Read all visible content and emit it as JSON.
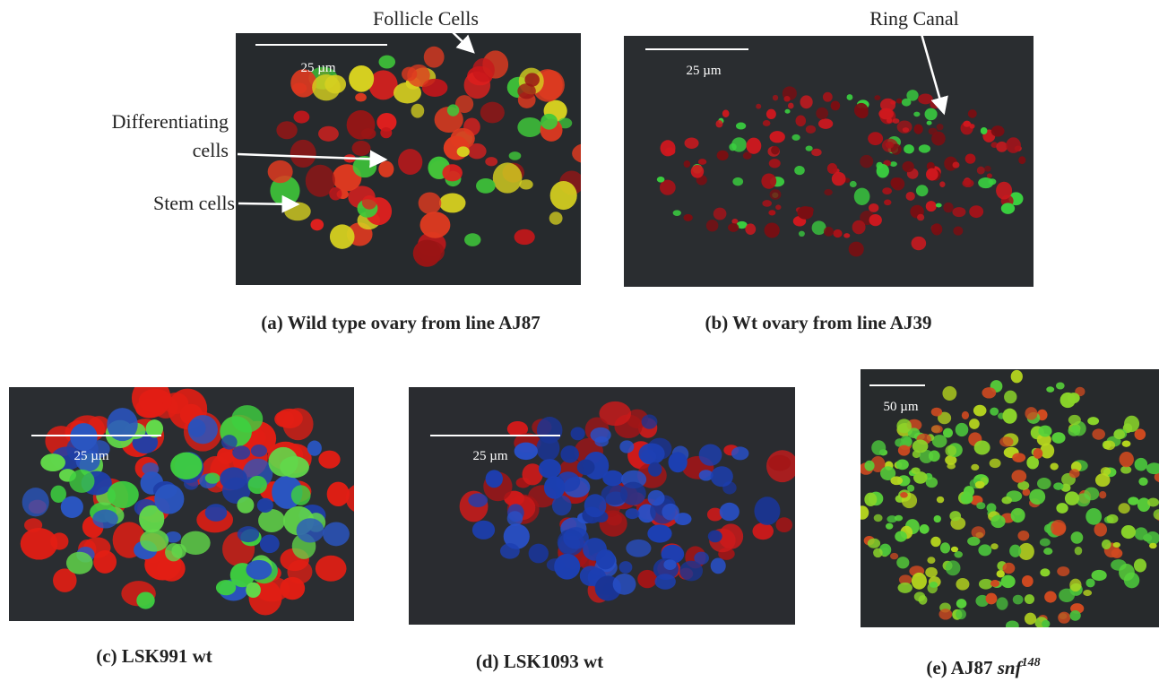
{
  "panels": [
    {
      "caption": "(a) Wild type ovary from line AJ87",
      "scale_label": "25 µm",
      "annotations": {
        "follicle_cells": "Follicle Cells",
        "differentiating_cells": [
          "Differentiating",
          "cells"
        ],
        "stem_cells": "Stem cells"
      }
    },
    {
      "caption": "(b) Wt ovary from line AJ39",
      "scale_label": "25 µm",
      "annotations": {
        "ring_canal": "Ring Canal"
      }
    },
    {
      "caption": "(c) LSK991 wt",
      "scale_label": "25 µm"
    },
    {
      "caption": "(d) LSK1093 wt",
      "scale_label": "25 µm"
    },
    {
      "caption_prefix": "(e) AJ87",
      "caption_gene": "snf",
      "caption_superscript": "148",
      "scale_label": "50 µm"
    }
  ]
}
